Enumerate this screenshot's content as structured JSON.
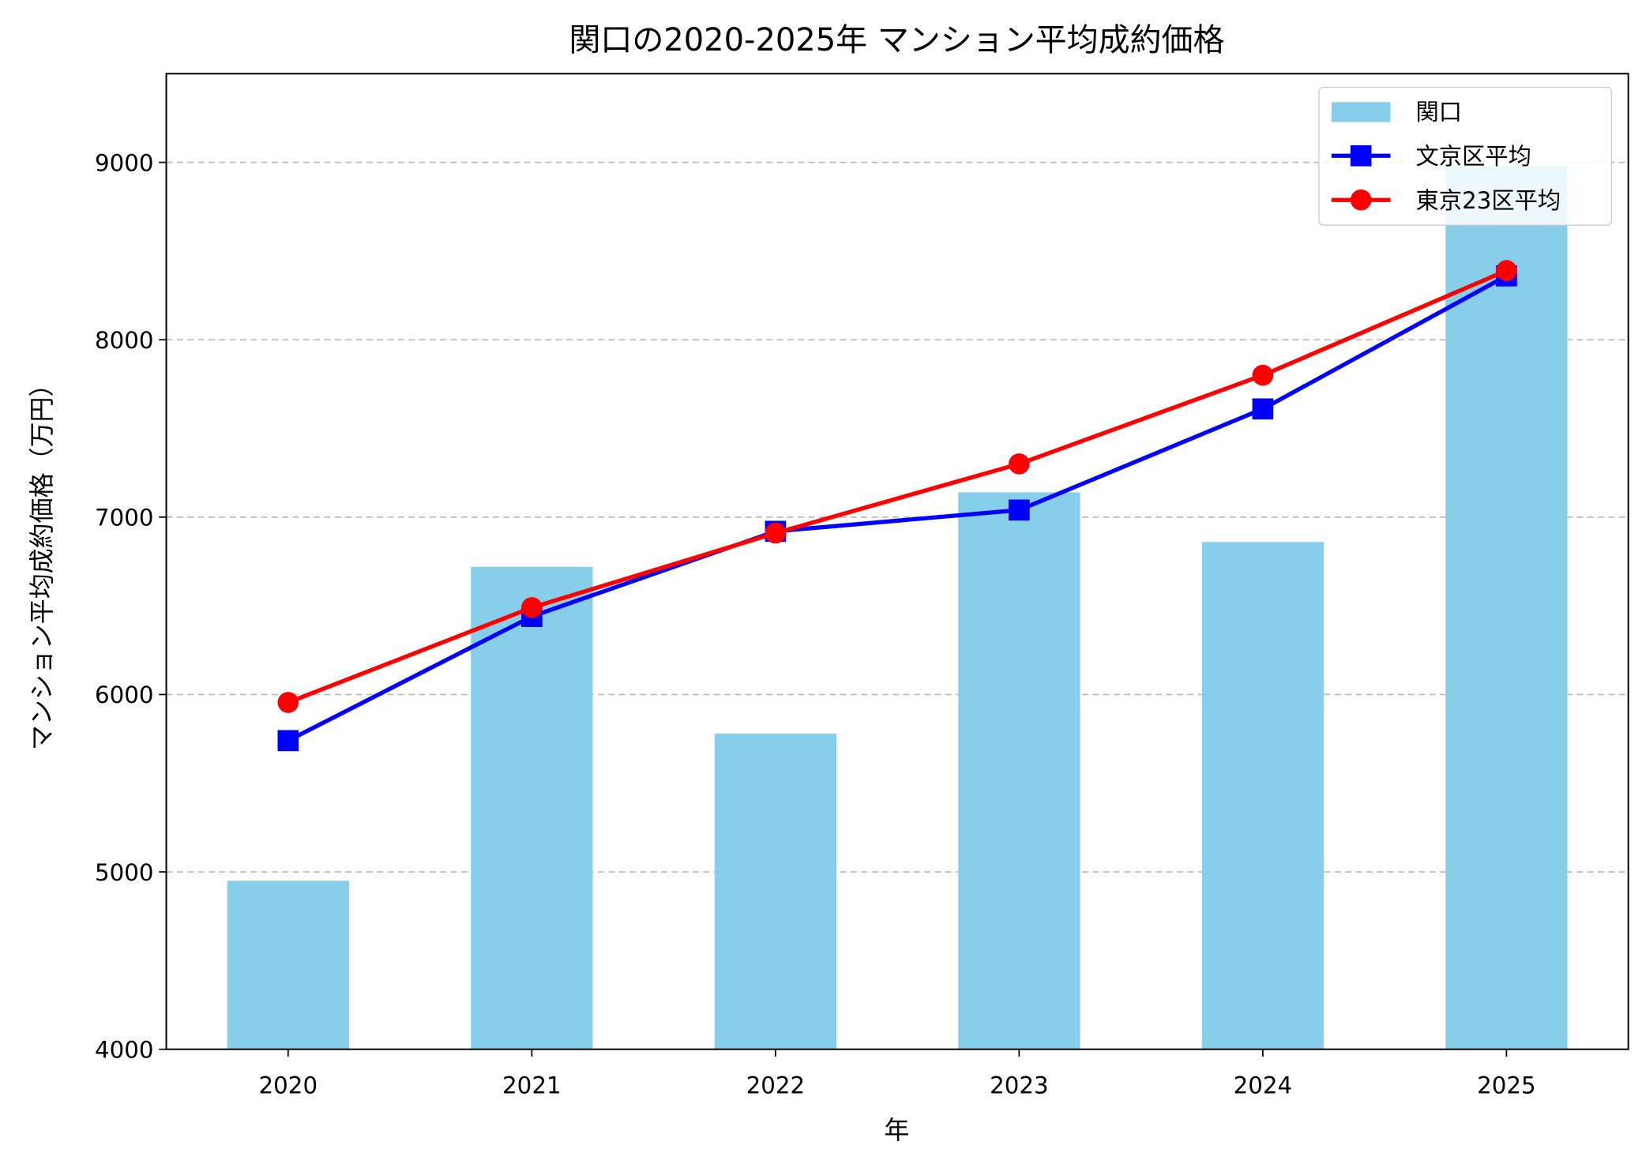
{
  "chart_data": {
    "type": "bar+line",
    "title": "関口の2020-2025年 マンション平均成約価格",
    "xlabel": "年",
    "ylabel": "マンション平均成約価格（万円）",
    "categories": [
      "2020",
      "2021",
      "2022",
      "2023",
      "2024",
      "2025"
    ],
    "ylim": [
      4000,
      9500
    ],
    "yticks": [
      "4000",
      "5000",
      "6000",
      "7000",
      "8000",
      "9000"
    ],
    "grid": "y dashed",
    "legend_position": "top-right",
    "series": [
      {
        "name": "関口",
        "kind": "bar",
        "color": "#87CEEB",
        "values": [
          4950,
          6720,
          5780,
          7140,
          6860,
          8980
        ]
      },
      {
        "name": "文京区平均",
        "kind": "line",
        "marker": "square",
        "color": "#0000FF",
        "values": [
          5740,
          6440,
          6920,
          7040,
          7610,
          8360
        ]
      },
      {
        "name": "東京23区平均",
        "kind": "line",
        "marker": "circle",
        "color": "#FF0000",
        "values": [
          5955,
          6490,
          6910,
          7300,
          7800,
          8390
        ]
      }
    ]
  }
}
